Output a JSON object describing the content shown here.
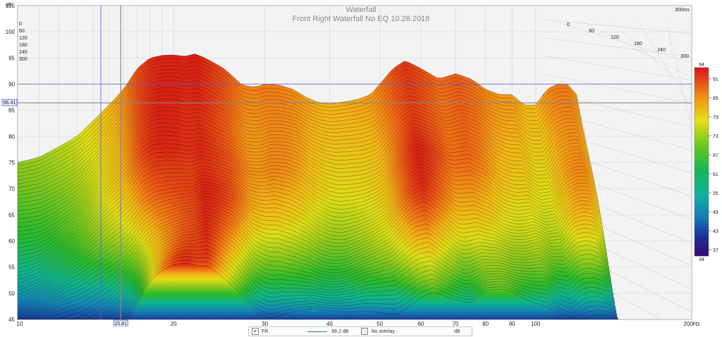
{
  "window_label": "300ms",
  "chart_data": {
    "type": "area",
    "title": "Waterfall",
    "subtitle": "Front Right Waterfall No EQ 10.28.2018",
    "xlabel": "Hz",
    "ylabel": "dB",
    "x_scale": "log",
    "xlim": [
      10,
      200
    ],
    "ylim": [
      45,
      105
    ],
    "x_ticks": [
      10,
      20,
      30,
      40,
      50,
      60,
      70,
      80,
      90,
      100
    ],
    "x_tick_labels": [
      "10",
      "20",
      "30",
      "40",
      "50",
      "60",
      "70",
      "80",
      "90",
      "100"
    ],
    "x_end_label": "200Hz",
    "y_ticks": [
      45,
      50,
      55,
      60,
      65,
      70,
      75,
      80,
      85,
      90,
      95,
      100,
      105
    ],
    "y_tick_labels": [
      "45",
      "50",
      "55",
      "60",
      "65",
      "70",
      "75",
      "80",
      "85",
      "90",
      "95",
      "100",
      "105"
    ],
    "time_ticks_ms": [
      "0",
      "60",
      "120",
      "180",
      "240",
      "300"
    ],
    "cursor": {
      "x_label": "15.81",
      "y_label": "86.41"
    },
    "colorbar": {
      "max_label": "94",
      "min_label": "34",
      "ticks": [
        "91",
        "85",
        "79",
        "73",
        "67",
        "61",
        "55",
        "49",
        "43",
        "37"
      ]
    },
    "series": [
      {
        "name": "FR",
        "front_x": [
          10,
          11,
          12,
          13,
          14,
          15,
          16,
          17,
          18,
          19,
          20,
          21,
          22,
          23,
          24,
          25,
          26,
          27,
          28,
          29,
          30,
          32,
          34,
          36,
          38,
          40,
          42,
          45,
          48,
          50,
          53,
          56,
          60,
          65,
          70,
          75,
          80,
          85,
          90,
          95,
          100,
          105,
          110,
          115,
          120
        ],
        "front_y": [
          75,
          76,
          78,
          80,
          83,
          86,
          89,
          93,
          95,
          95.5,
          95.6,
          95.3,
          95.8,
          95,
          94,
          93,
          91.5,
          90,
          89.5,
          89.5,
          90,
          89.8,
          89,
          87.5,
          86.5,
          86.2,
          86.5,
          87,
          88,
          90,
          93,
          94.5,
          93,
          91,
          92,
          91,
          89,
          88,
          88,
          86,
          86,
          89,
          90,
          90,
          88
        ]
      }
    ],
    "overlay_label": "No overlay",
    "readout": "66.2 dB",
    "unit_label": "dB"
  }
}
